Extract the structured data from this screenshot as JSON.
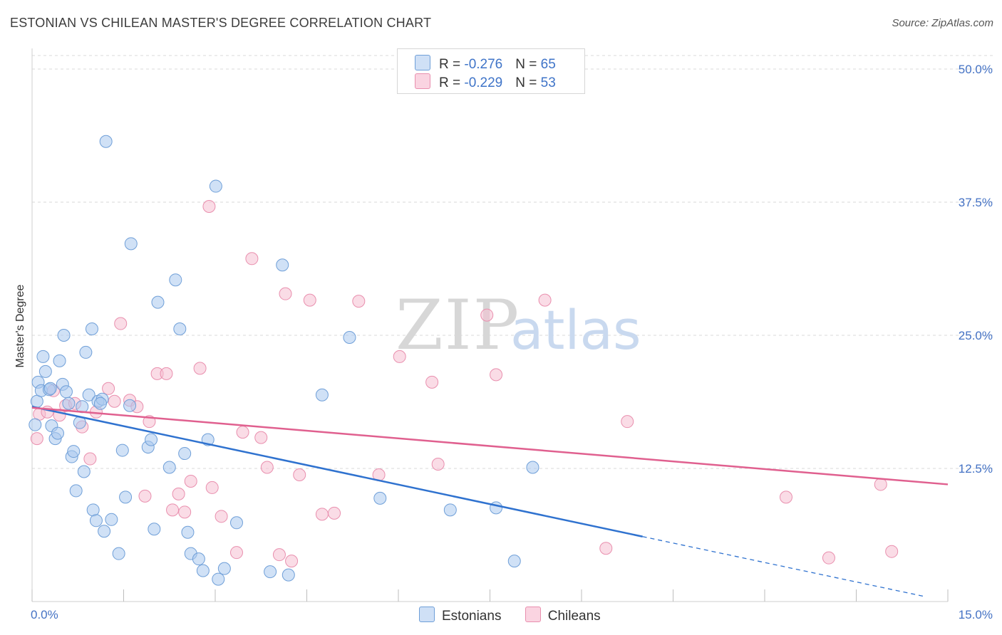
{
  "title": "ESTONIAN VS CHILEAN MASTER'S DEGREE CORRELATION CHART",
  "source": "Source: ZipAtlas.com",
  "colors": {
    "blue_fill": "#aac8ef",
    "blue_stroke": "#6f9fd8",
    "blue_line": "#2f72cf",
    "pink_fill": "#f6c0d2",
    "pink_stroke": "#e98fae",
    "pink_line": "#e0608f",
    "grid": "#d9d9d9",
    "axis_text": "#4472c4"
  },
  "legend": {
    "rows": [
      {
        "r_label": "R = ",
        "r_value": "-0.276",
        "n_label": "N = ",
        "n_value": "65",
        "color": "#aac8ef"
      },
      {
        "r_label": "R = ",
        "r_value": "-0.229",
        "n_label": "N = ",
        "n_value": "53",
        "color": "#f6c0d2"
      }
    ]
  },
  "bottom_legend": [
    {
      "label": "Estonians",
      "color": "#aac8ef"
    },
    {
      "label": "Chileans",
      "color": "#f6c0d2"
    }
  ],
  "watermark": {
    "zip": "ZIP",
    "atlas": "atlas"
  },
  "chart_data": {
    "type": "scatter",
    "title": "ESTONIAN VS CHILEAN MASTER'S DEGREE CORRELATION CHART",
    "xlabel": "",
    "ylabel": "Master's Degree",
    "xlim": [
      0,
      15
    ],
    "ylim": [
      0,
      50
    ],
    "x_tick_labels": [
      "0.0%",
      "15.0%"
    ],
    "y_ticks": [
      12.5,
      25.0,
      37.5,
      50.0
    ],
    "y_tick_labels": [
      "12.5%",
      "25.0%",
      "37.5%",
      "50.0%"
    ],
    "grid": true,
    "legend_position": "top-center",
    "series": [
      {
        "name": "Estonians",
        "r": -0.276,
        "n": 65,
        "trend": {
          "x0": 0.0,
          "y0": 18.3,
          "x1": 10.0,
          "y1": 6.1,
          "dashed_to_x": 14.6,
          "dashed_to_y": 0.5
        },
        "points": [
          [
            0.05,
            16.6
          ],
          [
            0.08,
            18.8
          ],
          [
            0.1,
            20.6
          ],
          [
            0.15,
            19.8
          ],
          [
            0.18,
            23.0
          ],
          [
            0.22,
            21.6
          ],
          [
            0.28,
            19.9
          ],
          [
            0.32,
            16.5
          ],
          [
            0.38,
            15.3
          ],
          [
            0.42,
            15.8
          ],
          [
            0.45,
            22.6
          ],
          [
            0.5,
            20.4
          ],
          [
            0.52,
            25.0
          ],
          [
            0.56,
            19.7
          ],
          [
            0.6,
            18.6
          ],
          [
            0.65,
            13.6
          ],
          [
            0.68,
            14.1
          ],
          [
            0.72,
            10.4
          ],
          [
            0.78,
            16.8
          ],
          [
            0.82,
            18.3
          ],
          [
            0.85,
            12.2
          ],
          [
            0.88,
            23.4
          ],
          [
            0.93,
            19.4
          ],
          [
            0.98,
            25.6
          ],
          [
            1.0,
            8.6
          ],
          [
            1.05,
            7.6
          ],
          [
            1.08,
            18.8
          ],
          [
            1.15,
            19.0
          ],
          [
            1.18,
            6.6
          ],
          [
            1.21,
            43.2
          ],
          [
            1.3,
            7.7
          ],
          [
            1.42,
            4.5
          ],
          [
            1.48,
            14.2
          ],
          [
            1.53,
            9.8
          ],
          [
            1.62,
            33.6
          ],
          [
            1.9,
            14.5
          ],
          [
            1.95,
            15.2
          ],
          [
            2.0,
            6.8
          ],
          [
            2.06,
            28.1
          ],
          [
            2.25,
            12.6
          ],
          [
            2.35,
            30.2
          ],
          [
            2.42,
            25.6
          ],
          [
            2.5,
            13.9
          ],
          [
            2.55,
            6.5
          ],
          [
            2.6,
            4.5
          ],
          [
            2.73,
            4.0
          ],
          [
            2.88,
            15.2
          ],
          [
            3.05,
            2.1
          ],
          [
            3.01,
            39.0
          ],
          [
            3.15,
            3.1
          ],
          [
            3.35,
            7.4
          ],
          [
            3.9,
            2.8
          ],
          [
            4.1,
            31.6
          ],
          [
            4.2,
            2.5
          ],
          [
            4.75,
            19.4
          ],
          [
            5.2,
            24.8
          ],
          [
            5.7,
            9.7
          ],
          [
            6.85,
            8.6
          ],
          [
            7.6,
            8.8
          ],
          [
            7.9,
            3.8
          ],
          [
            8.2,
            12.6
          ],
          [
            2.8,
            2.9
          ],
          [
            0.3,
            20.0
          ],
          [
            1.12,
            18.6
          ],
          [
            1.6,
            18.4
          ]
        ]
      },
      {
        "name": "Chileans",
        "r": -0.229,
        "n": 53,
        "trend": {
          "x0": 0.0,
          "y0": 18.2,
          "x1": 15.0,
          "y1": 11.0
        },
        "points": [
          [
            0.08,
            15.3
          ],
          [
            0.12,
            17.6
          ],
          [
            0.25,
            17.8
          ],
          [
            0.35,
            19.8
          ],
          [
            0.45,
            17.5
          ],
          [
            0.55,
            18.4
          ],
          [
            0.7,
            18.6
          ],
          [
            0.82,
            16.4
          ],
          [
            0.95,
            13.4
          ],
          [
            1.05,
            17.8
          ],
          [
            1.25,
            20.0
          ],
          [
            1.45,
            26.1
          ],
          [
            1.6,
            18.9
          ],
          [
            1.72,
            18.3
          ],
          [
            1.85,
            9.9
          ],
          [
            1.92,
            16.9
          ],
          [
            2.05,
            21.4
          ],
          [
            2.2,
            21.4
          ],
          [
            2.3,
            8.6
          ],
          [
            2.4,
            10.1
          ],
          [
            2.5,
            8.4
          ],
          [
            2.6,
            11.3
          ],
          [
            2.75,
            21.9
          ],
          [
            2.9,
            37.1
          ],
          [
            2.95,
            10.7
          ],
          [
            3.1,
            8.0
          ],
          [
            3.35,
            4.6
          ],
          [
            3.45,
            15.9
          ],
          [
            3.6,
            32.2
          ],
          [
            3.75,
            15.4
          ],
          [
            3.85,
            12.6
          ],
          [
            4.05,
            4.4
          ],
          [
            4.15,
            28.9
          ],
          [
            4.25,
            3.8
          ],
          [
            4.38,
            11.9
          ],
          [
            4.55,
            28.3
          ],
          [
            4.75,
            8.2
          ],
          [
            4.95,
            8.3
          ],
          [
            5.35,
            28.2
          ],
          [
            5.68,
            11.9
          ],
          [
            6.02,
            23.0
          ],
          [
            6.55,
            20.6
          ],
          [
            6.65,
            12.9
          ],
          [
            7.45,
            26.9
          ],
          [
            7.6,
            21.3
          ],
          [
            8.4,
            28.3
          ],
          [
            9.4,
            5.0
          ],
          [
            9.75,
            16.9
          ],
          [
            12.35,
            9.8
          ],
          [
            13.05,
            4.1
          ],
          [
            13.9,
            11.0
          ],
          [
            14.08,
            4.7
          ],
          [
            1.35,
            18.8
          ]
        ]
      }
    ]
  }
}
